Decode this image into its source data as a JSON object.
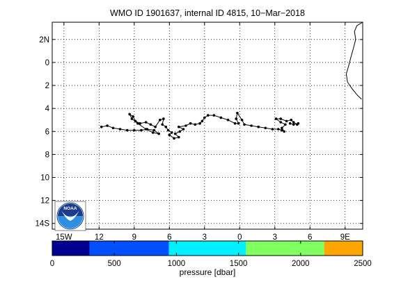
{
  "title": "WMO ID 1901637, internal ID 4815, 10−Mar−2018",
  "map": {
    "lon_range": [
      -16,
      10.5
    ],
    "lat_range": [
      -14.5,
      3.5
    ],
    "lat_axis_reversed": true,
    "grid": "on (dotted)",
    "y_ticks": [
      {
        "value": 2,
        "label": "2N"
      },
      {
        "value": 0,
        "label": "0"
      },
      {
        "value": -2,
        "label": "2"
      },
      {
        "value": -4,
        "label": "4"
      },
      {
        "value": -6,
        "label": "6"
      },
      {
        "value": -8,
        "label": "8"
      },
      {
        "value": -10,
        "label": "10"
      },
      {
        "value": -12,
        "label": "12"
      },
      {
        "value": -14,
        "label": "14S"
      }
    ],
    "x_ticks": [
      {
        "value": -15,
        "label": "15W"
      },
      {
        "value": -12,
        "label": "12"
      },
      {
        "value": -9,
        "label": "9"
      },
      {
        "value": -6,
        "label": "6"
      },
      {
        "value": -3,
        "label": "3"
      },
      {
        "value": 0,
        "label": "0"
      },
      {
        "value": 3,
        "label": "3"
      },
      {
        "value": 6,
        "label": "6"
      },
      {
        "value": 9,
        "label": "9E"
      }
    ],
    "logo_text": "NOAA",
    "logo_icon": "noaa-logo"
  },
  "chart_data": {
    "type": "scatter",
    "description_series": "float trajectory",
    "track": [
      [
        -11.8,
        -5.6
      ],
      [
        -11.3,
        -5.5
      ],
      [
        -10.8,
        -5.7
      ],
      [
        -10.2,
        -5.8
      ],
      [
        -9.6,
        -5.9
      ],
      [
        -9.0,
        -5.9
      ],
      [
        -8.4,
        -5.9
      ],
      [
        -7.9,
        -5.8
      ],
      [
        -7.3,
        -5.9
      ],
      [
        -6.9,
        -6.2
      ],
      [
        -7.4,
        -6.1
      ],
      [
        -8.0,
        -5.8
      ],
      [
        -8.7,
        -5.3
      ],
      [
        -9.2,
        -4.9
      ],
      [
        -9.4,
        -4.5
      ],
      [
        -9.1,
        -4.7
      ],
      [
        -8.9,
        -5.1
      ],
      [
        -8.5,
        -5.3
      ],
      [
        -8.0,
        -5.2
      ],
      [
        -7.6,
        -5.4
      ],
      [
        -7.2,
        -5.6
      ],
      [
        -6.8,
        -5.0
      ],
      [
        -6.5,
        -4.9
      ],
      [
        -6.6,
        -5.4
      ],
      [
        -6.3,
        -5.6
      ],
      [
        -6.1,
        -5.9
      ],
      [
        -5.8,
        -6.1
      ],
      [
        -6.0,
        -6.3
      ],
      [
        -5.6,
        -6.6
      ],
      [
        -5.2,
        -6.5
      ],
      [
        -5.5,
        -6.2
      ],
      [
        -5.1,
        -6.0
      ],
      [
        -4.8,
        -5.8
      ],
      [
        -5.2,
        -5.6
      ],
      [
        -4.6,
        -5.5
      ],
      [
        -4.2,
        -5.3
      ],
      [
        -3.8,
        -5.4
      ],
      [
        -3.4,
        -5.3
      ],
      [
        -3.2,
        -5.1
      ],
      [
        -3.0,
        -4.8
      ],
      [
        -2.7,
        -4.6
      ],
      [
        -2.2,
        -4.6
      ],
      [
        -1.6,
        -4.8
      ],
      [
        -1.0,
        -5.0
      ],
      [
        -0.4,
        -5.3
      ],
      [
        -0.1,
        -5.3
      ],
      [
        -0.3,
        -4.9
      ],
      [
        -0.2,
        -4.4
      ],
      [
        0.2,
        -5.0
      ],
      [
        0.4,
        -5.4
      ],
      [
        1.0,
        -5.5
      ],
      [
        1.6,
        -5.6
      ],
      [
        2.2,
        -5.7
      ],
      [
        2.8,
        -5.8
      ],
      [
        3.3,
        -5.8
      ],
      [
        3.6,
        -5.9
      ],
      [
        3.8,
        -6.0
      ],
      [
        3.6,
        -5.7
      ],
      [
        3.9,
        -5.4
      ],
      [
        3.5,
        -5.2
      ],
      [
        3.1,
        -4.9
      ],
      [
        3.5,
        -4.9
      ],
      [
        4.0,
        -5.1
      ],
      [
        4.4,
        -5.0
      ],
      [
        4.6,
        -5.2
      ],
      [
        4.9,
        -5.4
      ],
      [
        5.0,
        -5.3
      ],
      [
        4.6,
        -5.4
      ],
      [
        4.3,
        -5.3
      ]
    ]
  },
  "coastline": [
    [
      10.5,
      3.5
    ],
    [
      10.0,
      3.2
    ],
    [
      9.8,
      2.7
    ],
    [
      9.9,
      2.0
    ],
    [
      9.7,
      1.2
    ],
    [
      9.5,
      0.5
    ],
    [
      9.3,
      -0.3
    ],
    [
      9.1,
      -1.0
    ],
    [
      9.2,
      -1.7
    ],
    [
      9.6,
      -2.3
    ],
    [
      10.0,
      -2.8
    ],
    [
      10.4,
      -3.2
    ]
  ],
  "colorbar": {
    "label": "pressure [dbar]",
    "ticks": [
      "0",
      "500",
      "1000",
      "1500",
      "2000",
      "2500"
    ],
    "range": [
      0,
      2500
    ],
    "bands": [
      {
        "from": 0,
        "to": 300,
        "color": "#000090"
      },
      {
        "from": 300,
        "to": 940,
        "color": "#0050ff"
      },
      {
        "from": 940,
        "to": 1560,
        "color": "#00f0ff"
      },
      {
        "from": 1560,
        "to": 2190,
        "color": "#80ff60"
      },
      {
        "from": 2190,
        "to": 2500,
        "color": "#ffa500"
      }
    ]
  }
}
